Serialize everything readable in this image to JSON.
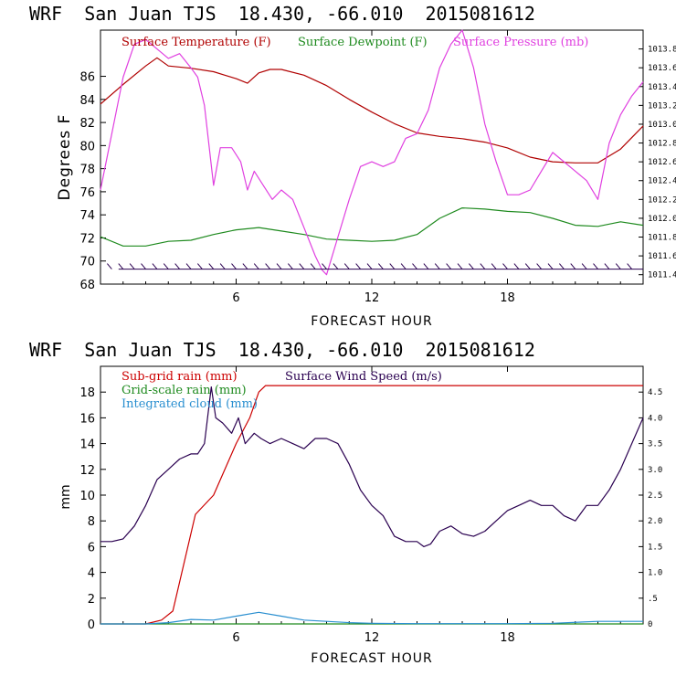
{
  "top_chart": {
    "title": "WRF  San Juan TJS  18.430, -66.010  2015081612",
    "xlabel": "FORECAST HOUR",
    "ylabel": "Degrees F"
  },
  "bottom_chart": {
    "title": "WRF  San Juan TJS  18.430, -66.010  2015081612",
    "xlabel": "FORECAST HOUR",
    "ylabel": "mm"
  },
  "colors": {
    "temperature": "#b00000",
    "dewpoint": "#1e8a1e",
    "pressure": "#e040e0",
    "subgrid_rain": "#cc0000",
    "gridscale_rain": "#1e8a1e",
    "cloud": "#2a8fd0",
    "wind_speed": "#2a0050"
  },
  "chart_data": [
    {
      "type": "line",
      "title": "WRF  San Juan TJS  18.430, -66.010  2015081612",
      "xlabel": "FORECAST HOUR",
      "ylabel": "Degrees F",
      "xlim": [
        0,
        24
      ],
      "ylim": [
        68,
        90
      ],
      "ylim_right": [
        1011.3,
        1014.0
      ],
      "x_ticks": [
        6,
        12,
        18
      ],
      "y_ticks": [
        68,
        70,
        72,
        74,
        76,
        78,
        80,
        82,
        84,
        86
      ],
      "y_right_ticks": [
        "1011.4",
        "1011.6",
        "1011.8",
        "1012.0",
        "1012.2",
        "1012.4",
        "1012.6",
        "1012.8",
        "1013.0",
        "1013.2",
        "1013.4",
        "1013.6",
        "1013.8"
      ],
      "grid": false,
      "legend": "top",
      "series": [
        {
          "name": "Surface Temperature (F)",
          "axis": "left",
          "x": [
            0,
            1,
            2,
            2.5,
            3,
            4,
            5,
            5.5,
            6,
            6.5,
            7,
            7.5,
            8,
            9,
            10,
            11,
            12,
            13,
            14,
            15,
            16,
            17,
            18,
            19,
            20,
            21,
            22,
            23,
            24
          ],
          "y": [
            83.6,
            85.3,
            86.9,
            87.6,
            86.9,
            86.7,
            86.4,
            86.1,
            85.8,
            85.4,
            86.3,
            86.6,
            86.6,
            86.1,
            85.2,
            84.0,
            82.9,
            81.9,
            81.1,
            80.8,
            80.6,
            80.3,
            79.8,
            79.0,
            78.6,
            78.5,
            78.5,
            79.7,
            81.7
          ]
        },
        {
          "name": "Surface Dewpoint (F)",
          "axis": "left",
          "x": [
            0,
            1,
            2,
            3,
            4,
            5,
            6,
            7,
            8,
            9,
            10,
            11,
            12,
            13,
            14,
            15,
            16,
            17,
            18,
            19,
            20,
            21,
            22,
            23,
            24
          ],
          "y": [
            72.1,
            71.3,
            71.3,
            71.7,
            71.8,
            72.3,
            72.7,
            72.9,
            72.6,
            72.3,
            71.9,
            71.8,
            71.7,
            71.8,
            72.3,
            73.7,
            74.6,
            74.5,
            74.3,
            74.2,
            73.7,
            73.1,
            73.0,
            73.4,
            73.1
          ]
        },
        {
          "name": "Surface Pressure (mb)",
          "axis": "right",
          "x": [
            0,
            0.5,
            1,
            1.5,
            2,
            2.5,
            3,
            3.5,
            4,
            4.3,
            4.6,
            5,
            5.3,
            5.8,
            6.2,
            6.5,
            6.8,
            7.2,
            7.6,
            8,
            8.5,
            9,
            9.5,
            9.8,
            10,
            10.5,
            11,
            11.5,
            12,
            12.5,
            13,
            13.5,
            14,
            14.5,
            15,
            15.5,
            16,
            16.5,
            17,
            17.5,
            18,
            18.5,
            19,
            19.5,
            20,
            20.5,
            21,
            21.5,
            22,
            22.5,
            23,
            23.5,
            24
          ],
          "y": [
            1012.3,
            1012.9,
            1013.5,
            1013.85,
            1013.9,
            1013.8,
            1013.7,
            1013.75,
            1013.6,
            1013.5,
            1013.2,
            1012.35,
            1012.75,
            1012.75,
            1012.6,
            1012.3,
            1012.5,
            1012.35,
            1012.2,
            1012.3,
            1012.2,
            1011.9,
            1011.6,
            1011.45,
            1011.4,
            1011.8,
            1012.2,
            1012.55,
            1012.6,
            1012.55,
            1012.6,
            1012.85,
            1012.9,
            1013.15,
            1013.6,
            1013.85,
            1014.0,
            1013.6,
            1013.0,
            1012.6,
            1012.25,
            1012.25,
            1012.3,
            1012.5,
            1012.7,
            1012.6,
            1012.5,
            1012.4,
            1012.2,
            1012.8,
            1013.1,
            1013.3,
            1013.45
          ]
        }
      ],
      "wind_barbs": "along bottom at 69.3"
    },
    {
      "type": "line",
      "title": "WRF  San Juan TJS  18.430, -66.010  2015081612",
      "xlabel": "FORECAST HOUR",
      "ylabel": "mm",
      "xlim": [
        0,
        24
      ],
      "ylim": [
        0,
        20
      ],
      "ylim_right": [
        0,
        5.0
      ],
      "x_ticks": [
        6,
        12,
        18
      ],
      "y_ticks": [
        0,
        2,
        4,
        6,
        8,
        10,
        12,
        14,
        16,
        18
      ],
      "y_right_ticks": [
        "0",
        ".5",
        "1.0",
        "1.5",
        "2.0",
        "2.5",
        "3.0",
        "3.5",
        "4.0",
        "4.5"
      ],
      "grid": false,
      "legend": "top-left",
      "series": [
        {
          "name": "Sub-grid rain (mm)",
          "axis": "left",
          "x": [
            0,
            2,
            2.7,
            3.2,
            4.2,
            5,
            6,
            6.6,
            7,
            7.3,
            24
          ],
          "y": [
            0,
            0,
            0.3,
            1.0,
            8.5,
            10.0,
            14.0,
            16.0,
            18.0,
            18.5,
            18.5
          ]
        },
        {
          "name": "Grid-scale rain (mm)",
          "axis": "left",
          "x": [
            0,
            24
          ],
          "y": [
            0,
            0
          ]
        },
        {
          "name": "Integrated cloud (mm)",
          "axis": "left",
          "x": [
            0,
            2,
            3,
            4,
            5,
            6,
            7,
            8,
            9,
            10,
            11,
            12,
            14,
            16,
            18,
            20,
            22,
            24
          ],
          "y": [
            0,
            0,
            0.1,
            0.35,
            0.3,
            0.6,
            0.9,
            0.6,
            0.3,
            0.2,
            0.1,
            0.05,
            0.02,
            0.02,
            0.02,
            0.05,
            0.2,
            0.2
          ]
        },
        {
          "name": "Surface Wind Speed (m/s)",
          "axis": "right",
          "x": [
            0,
            0.5,
            1,
            1.5,
            2,
            2.5,
            3,
            3.5,
            4,
            4.3,
            4.6,
            4.9,
            5.1,
            5.4,
            5.8,
            6.1,
            6.4,
            6.8,
            7.1,
            7.5,
            8,
            8.5,
            9,
            9.5,
            10,
            10.5,
            11,
            11.5,
            12,
            12.5,
            13,
            13.5,
            14,
            14.3,
            14.6,
            15,
            15.5,
            16,
            16.5,
            17,
            17.5,
            18,
            18.5,
            19,
            19.5,
            20,
            20.5,
            21,
            21.5,
            22,
            22.5,
            23,
            23.5,
            24
          ],
          "y": [
            1.6,
            1.6,
            1.65,
            1.9,
            2.3,
            2.8,
            3.0,
            3.2,
            3.3,
            3.3,
            3.5,
            4.6,
            4.0,
            3.9,
            3.7,
            4.0,
            3.5,
            3.7,
            3.6,
            3.5,
            3.6,
            3.5,
            3.4,
            3.6,
            3.6,
            3.5,
            3.1,
            2.6,
            2.3,
            2.1,
            1.7,
            1.6,
            1.6,
            1.5,
            1.55,
            1.8,
            1.9,
            1.75,
            1.7,
            1.8,
            2.0,
            2.2,
            2.3,
            2.4,
            2.3,
            2.3,
            2.1,
            2.0,
            2.3,
            2.3,
            2.6,
            3.0,
            3.5,
            4.0
          ]
        }
      ]
    }
  ]
}
